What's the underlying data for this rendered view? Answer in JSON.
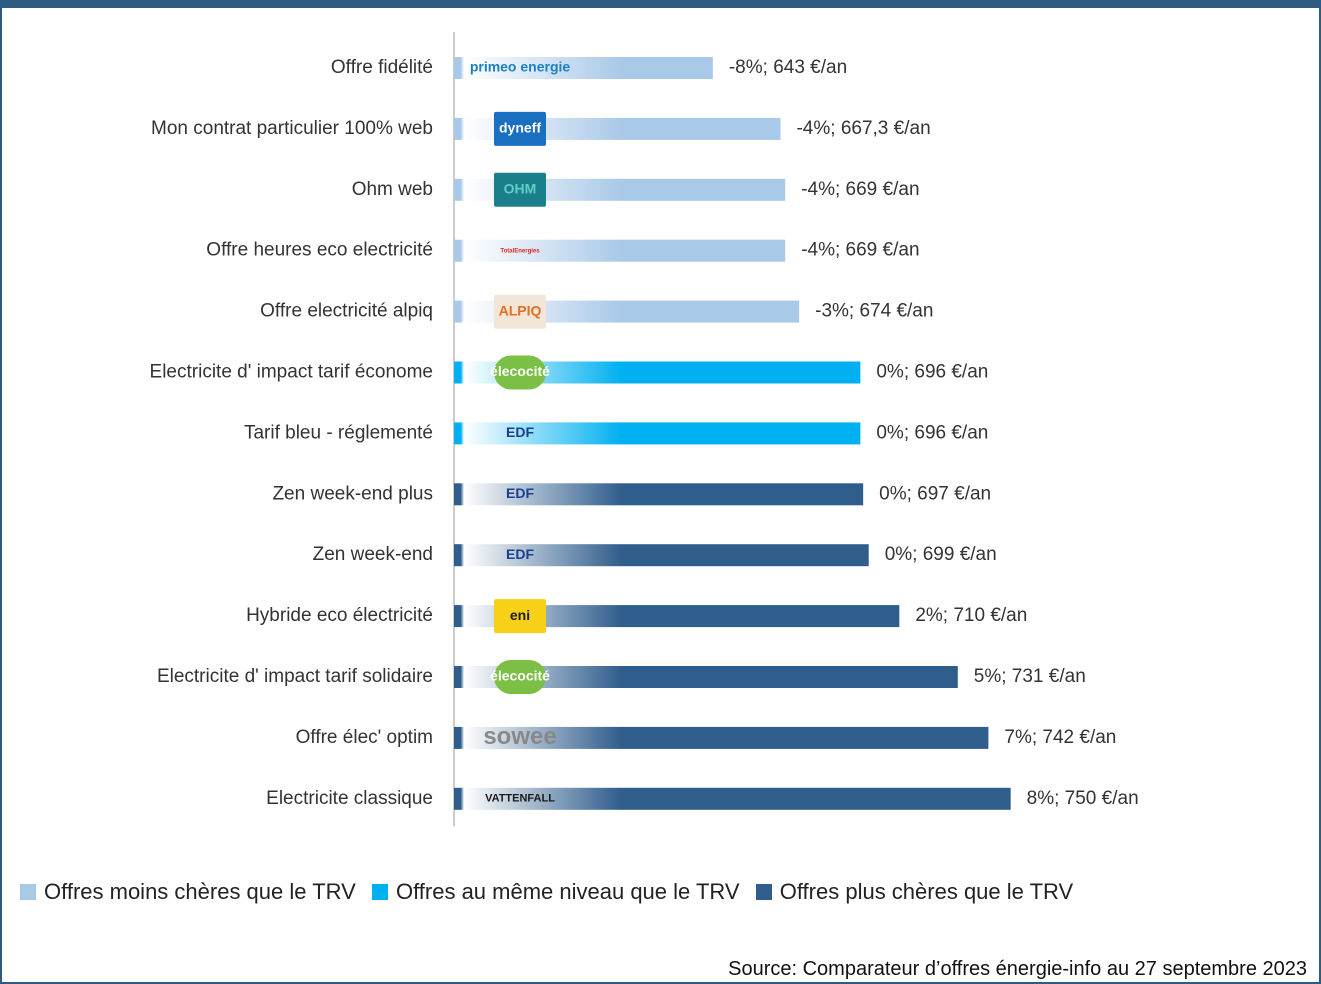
{
  "chart_data": {
    "type": "bar",
    "orientation": "horizontal",
    "categories": [
      "Offre fidélité",
      "Mon contrat particulier 100% web",
      "Ohm web",
      "Offre heures eco electricité",
      "Offre electricité alpiq",
      "Electricite d' impact tarif économe",
      "Tarif bleu - réglementé ",
      "Zen week-end plus",
      "Zen week-end",
      "Hybride eco électricité",
      "Electricite d' impact tarif solidaire",
      "Offre élec' optim",
      "Electricite classique"
    ],
    "logos": [
      "primeo energie",
      "dyneff",
      "OHM",
      "TotalEnergies",
      "ALPIQ",
      "élecocité",
      "EDF",
      "EDF",
      "EDF",
      "eni",
      "élecocité",
      "sowee",
      "VATTENFALL"
    ],
    "series": [
      {
        "name": "Offres moins chères que le TRV",
        "color": "#a9c9e8",
        "values": [
          643,
          667.3,
          669,
          669,
          674,
          null,
          null,
          null,
          null,
          null,
          null,
          null,
          null
        ],
        "value_labels": [
          "-8%; 643 €/an",
          "-4%; 667,3 €/an",
          "-4%; 669 €/an",
          "-4%; 669 €/an",
          "-3%; 674 €/an",
          null,
          null,
          null,
          null,
          null,
          null,
          null,
          null
        ]
      },
      {
        "name": "Offres au même niveau que le TRV",
        "color": "#00b0f0",
        "values": [
          null,
          null,
          null,
          null,
          null,
          696,
          696,
          null,
          null,
          null,
          null,
          null,
          null
        ],
        "value_labels": [
          null,
          null,
          null,
          null,
          null,
          "0%; 696 €/an",
          "0%; 696 €/an",
          null,
          null,
          null,
          null,
          null,
          null
        ]
      },
      {
        "name": "Offres plus chères que le TRV",
        "color": "#2f5d8c",
        "values": [
          null,
          null,
          null,
          null,
          null,
          null,
          null,
          697,
          699,
          710,
          731,
          742,
          750
        ],
        "value_labels": [
          null,
          null,
          null,
          null,
          null,
          null,
          null,
          "0%; 697 €/an",
          "0%; 699 €/an",
          "2%; 710 €/an",
          "5%; 731 €/an",
          "7%; 742 €/an",
          "8%; 750 €/an"
        ]
      }
    ],
    "xlim": [
      550,
      850
    ],
    "legend": "bottom",
    "source": "Source: Comparateur d’offres énergie-info au 27 septembre 2023"
  }
}
